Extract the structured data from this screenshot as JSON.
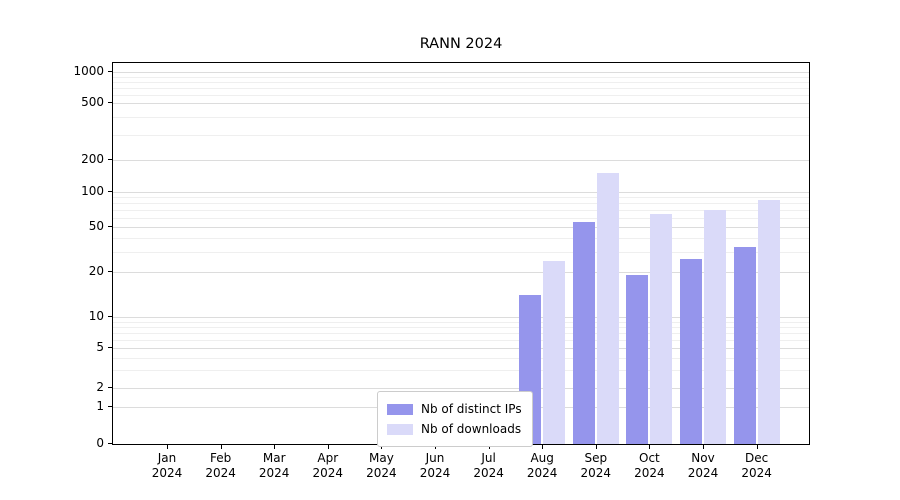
{
  "title": "RANN 2024",
  "legend": [
    {
      "label": "Nb of distinct IPs",
      "color": "#9595ec"
    },
    {
      "label": "Nb of downloads",
      "color": "#dadaf9"
    }
  ],
  "chart_data": {
    "type": "bar",
    "title": "RANN 2024",
    "categories": [
      "Jan 2024",
      "Feb 2024",
      "Mar 2024",
      "Apr 2024",
      "May 2024",
      "Jun 2024",
      "Jul 2024",
      "Aug 2024",
      "Sep 2024",
      "Oct 2024",
      "Nov 2024",
      "Dec 2024"
    ],
    "series": [
      {
        "name": "Nb of distinct IPs",
        "color": "#9595ec",
        "values": [
          0,
          0,
          0,
          0,
          0,
          0,
          0,
          14,
          55,
          19,
          26,
          33
        ]
      },
      {
        "name": "Nb of downloads",
        "color": "#dadaf9",
        "values": [
          0,
          0,
          0,
          0,
          0,
          0,
          0,
          25,
          150,
          65,
          70,
          85
        ]
      }
    ],
    "xlabel": "",
    "ylabel": "",
    "yscale": "log-like (0,1,2,5,10,20,50,100,200,500,1000)",
    "yticks": [
      0,
      1,
      2,
      5,
      10,
      20,
      50,
      100,
      200,
      500,
      1000
    ],
    "minor_yticks": [
      3,
      4,
      6,
      7,
      8,
      9,
      30,
      40,
      60,
      70,
      80,
      90,
      300,
      400,
      600,
      700,
      800,
      900
    ],
    "grid": "horizontal",
    "legend_position": "lower center"
  }
}
